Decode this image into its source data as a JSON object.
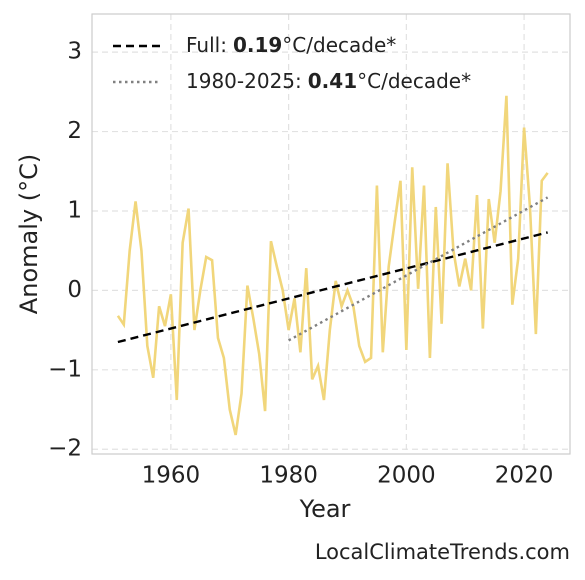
{
  "chart_data": {
    "type": "line",
    "xlabel": "Year",
    "ylabel": "Anomaly (°C)",
    "source": "LocalClimateTrends.com",
    "xlim": [
      1946.6,
      2027.8
    ],
    "ylim": [
      -2.06,
      3.48
    ],
    "xticks": [
      1960,
      1980,
      2000,
      2020
    ],
    "yticks": [
      {
        "value": -2,
        "label": "−2"
      },
      {
        "value": -1,
        "label": "−1"
      },
      0,
      1,
      2,
      3
    ],
    "grid": true,
    "legend": "upper left",
    "x": [
      1951,
      1952,
      1953,
      1954,
      1955,
      1956,
      1957,
      1958,
      1959,
      1960,
      1961,
      1962,
      1963,
      1964,
      1965,
      1966,
      1967,
      1968,
      1969,
      1970,
      1971,
      1972,
      1973,
      1974,
      1975,
      1976,
      1977,
      1978,
      1979,
      1980,
      1981,
      1982,
      1983,
      1984,
      1985,
      1986,
      1987,
      1988,
      1989,
      1990,
      1991,
      1992,
      1993,
      1994,
      1995,
      1996,
      1997,
      1998,
      1999,
      2000,
      2001,
      2002,
      2003,
      2004,
      2005,
      2006,
      2007,
      2008,
      2009,
      2010,
      2011,
      2012,
      2013,
      2014,
      2015,
      2016,
      2017,
      2018,
      2019,
      2020,
      2021,
      2022,
      2023,
      2024
    ],
    "series": [
      {
        "color": "#f1d67b",
        "values": [
          -0.32,
          -0.43,
          0.5,
          1.12,
          0.5,
          -0.7,
          -1.1,
          -0.2,
          -0.45,
          -0.05,
          -1.38,
          0.6,
          1.03,
          -0.5,
          0.0,
          0.42,
          0.38,
          -0.6,
          -0.85,
          -1.5,
          -1.82,
          -1.3,
          0.06,
          -0.35,
          -0.8,
          -1.52,
          0.62,
          0.3,
          0.0,
          -0.5,
          -0.1,
          -0.78,
          0.28,
          -1.12,
          -0.95,
          -1.38,
          -0.5,
          0.12,
          -0.2,
          0.0,
          -0.2,
          -0.7,
          -0.9,
          -0.85,
          1.32,
          -0.78,
          0.3,
          0.85,
          1.38,
          -0.75,
          1.55,
          0.02,
          1.32,
          -0.85,
          1.05,
          -0.42,
          1.6,
          0.5,
          0.05,
          0.4,
          0.0,
          1.2,
          -0.48,
          1.15,
          0.6,
          1.25,
          2.45,
          -0.18,
          0.4,
          2.05,
          1.05,
          -0.55,
          1.38,
          1.48
        ]
      },
      {
        "name": "Full:",
        "slope": 0.19,
        "slope_unit": "°C/decade*",
        "color": "#000000",
        "dash": "dashed",
        "x": [
          1951,
          2024
        ],
        "values": [
          -0.65,
          0.73
        ]
      },
      {
        "name": "1980-2025:",
        "slope": 0.41,
        "slope_unit": "°C/decade*",
        "color": "#808080",
        "dash": "dotted",
        "x": [
          1980,
          2024
        ],
        "values": [
          -0.63,
          1.17
        ]
      }
    ]
  }
}
